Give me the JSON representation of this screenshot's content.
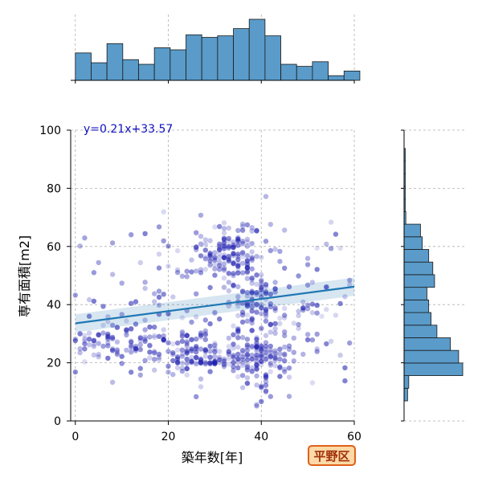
{
  "badge_label": "平野区",
  "chart_data": {
    "type": "scatter",
    "xlabel": "築年数[年]",
    "ylabel": "専有面積[m2]",
    "xlim": [
      -1,
      60
    ],
    "ylim": [
      0,
      100
    ],
    "xticks": [
      0,
      20,
      40,
      60
    ],
    "yticks": [
      0,
      20,
      40,
      60,
      80,
      100
    ],
    "grid": true,
    "regression": {
      "equation_label": "y=0.21x+33.57",
      "slope": 0.21,
      "intercept": 33.57,
      "color": "#1f77b4"
    },
    "point_color": "#2020b0",
    "clusters": [
      {
        "cx": 33,
        "cy": 58,
        "sx": 4,
        "sy": 5,
        "n": 130
      },
      {
        "cx": 38,
        "cy": 22,
        "sx": 4,
        "sy": 4,
        "n": 130
      },
      {
        "cx": 38,
        "cy": 40,
        "sx": 3,
        "sy": 6,
        "n": 90
      },
      {
        "cx": 8,
        "cy": 27,
        "sx": 6,
        "sy": 4,
        "n": 90
      },
      {
        "cx": 25,
        "cy": 23,
        "sx": 6,
        "sy": 5,
        "n": 90
      },
      {
        "cx": 28,
        "cy": 20,
        "sx": 3,
        "sy": 0.3,
        "n": 25
      },
      {
        "cx": 30,
        "cy": 40,
        "sx": 18,
        "sy": 14,
        "n": 160
      },
      {
        "cx": 50,
        "cy": 35,
        "sx": 6,
        "sy": 12,
        "n": 50
      },
      {
        "cx": 40,
        "cy": 10,
        "sx": 1,
        "sy": 3,
        "n": 8
      }
    ],
    "x_hist": {
      "bin_start": 0,
      "bin_width": 3.4,
      "counts": [
        0.53,
        0.34,
        0.71,
        0.4,
        0.31,
        0.63,
        0.59,
        0.88,
        0.83,
        0.86,
        1.0,
        1.18,
        0.86,
        0.31,
        0.27,
        0.36,
        0.09,
        0.18
      ]
    },
    "y_hist": {
      "bin_start": 6.9,
      "bin_width": 4.34,
      "counts": [
        0.06,
        0.08,
        1.0,
        0.93,
        0.79,
        0.56,
        0.46,
        0.42,
        0.39,
        0.52,
        0.49,
        0.42,
        0.31,
        0.28,
        0.03,
        0.02,
        0.02,
        0.02,
        0.02,
        0.02
      ]
    }
  }
}
